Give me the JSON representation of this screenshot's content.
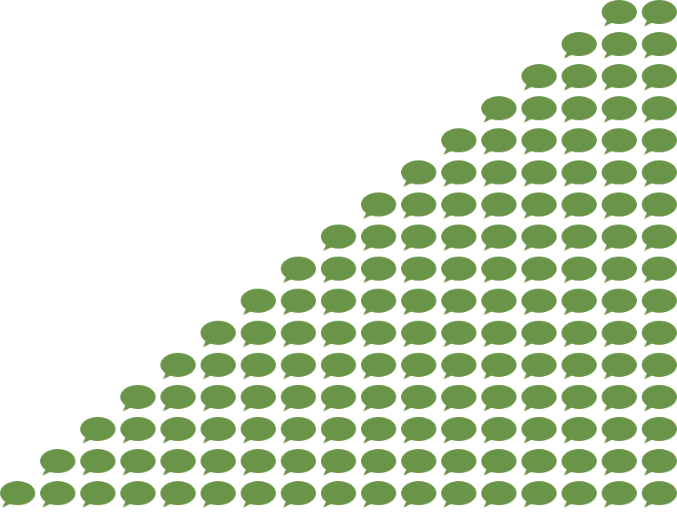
{
  "pattern": {
    "icon": "speech-bubble-icon",
    "color": "#6a9448",
    "columns": 17,
    "rows": 16,
    "arrangement": "staircase-triangle-bottom-right"
  }
}
